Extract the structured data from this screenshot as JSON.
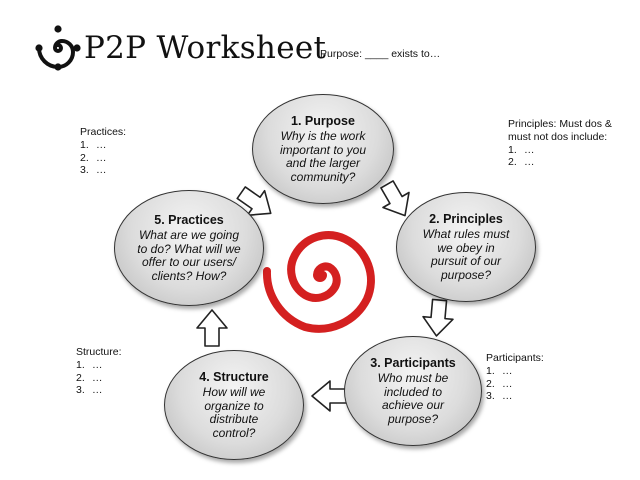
{
  "header": {
    "title": "P2P Worksheet",
    "purpose_note": "Purpose: ____ exists to…"
  },
  "cycle": [
    {
      "heading": "1. Purpose",
      "question": "Why is the work important to you and the larger community?"
    },
    {
      "heading": "2. Principles",
      "question": "What rules must we obey in pursuit of our purpose?"
    },
    {
      "heading": "3. Participants",
      "question": "Who must be included to achieve our purpose?"
    },
    {
      "heading": "4. Structure",
      "question": "How will we organize to distribute control?"
    },
    {
      "heading": "5. Practices",
      "question": "What are we going to do? What will we offer to our users/ clients? How?"
    }
  ],
  "notes": {
    "practices": {
      "header": "Practices:",
      "items": [
        {
          "num": "1.",
          "text": "…"
        },
        {
          "num": "2.",
          "text": "…"
        },
        {
          "num": "3.",
          "text": "…"
        }
      ]
    },
    "principles": {
      "header": "Principles: Must dos & must not dos include:",
      "items": [
        {
          "num": "1.",
          "text": "…"
        },
        {
          "num": "2.",
          "text": "…"
        }
      ]
    },
    "structure": {
      "header": "Structure:",
      "items": [
        {
          "num": "1.",
          "text": "…"
        },
        {
          "num": "2.",
          "text": "…"
        },
        {
          "num": "3.",
          "text": "…"
        }
      ]
    },
    "participants": {
      "header": "Participants:",
      "items": [
        {
          "num": "1.",
          "text": "…"
        },
        {
          "num": "2.",
          "text": "…"
        },
        {
          "num": "3.",
          "text": "…"
        }
      ]
    }
  },
  "colors": {
    "spiral": "#d42020",
    "ellipse_fill": "#d8d8d8",
    "ellipse_border": "#333333"
  },
  "icons": {
    "logo": "spiral-logo-icon",
    "arrow": "outline-arrow-icon"
  }
}
